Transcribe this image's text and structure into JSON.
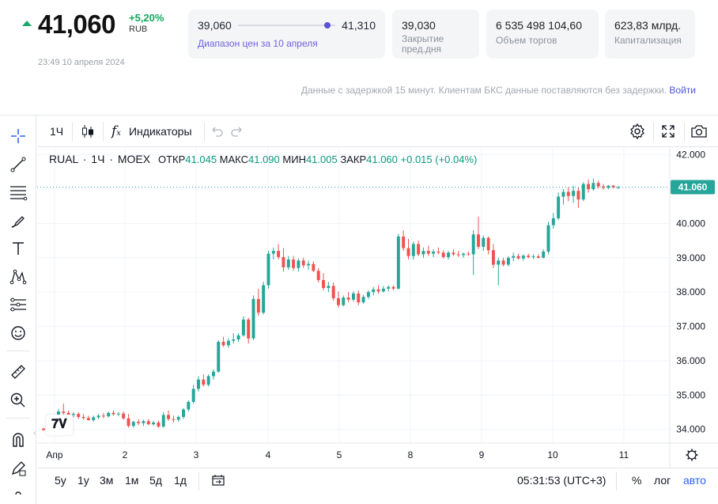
{
  "quote": {
    "price": "41,060",
    "change": "+5,20%",
    "currency": "RUB",
    "timestamp": "23:49 10 апреля 2024",
    "trend_color": "#1aa86a"
  },
  "stats": {
    "range_low": "39,060",
    "range_high": "41,310",
    "range_position": 0.92,
    "range_label": "Диапазон цен за 10 апреля",
    "prev_close": "39,030",
    "prev_close_label": "Закрытие пред.дня",
    "volume": "6 535 498 104,60",
    "volume_label": "Объем торгов",
    "cap": "623,83 млрд.",
    "cap_label": "Капитализация"
  },
  "notice": {
    "text": "Данные с задержкой 15 минут. Клиентам БКС данные поставляются без задержки.",
    "login": "Войти"
  },
  "toolbar": {
    "interval": "1Ч",
    "indicators": "Индикаторы"
  },
  "left_tools": [
    "crosshair-icon",
    "trendline-icon",
    "fib-icon",
    "brush-icon",
    "text-icon",
    "pattern-icon",
    "forecast-icon",
    "emoji-icon",
    "ruler-icon",
    "zoom-in-icon",
    "magnet-icon",
    "lock-draw-icon"
  ],
  "legend": {
    "symbol": "RUAL",
    "interval": "1Ч",
    "exchange": "MOEX",
    "open_label": "ОТКР",
    "open": "41.045",
    "high_label": "МАКС",
    "high": "41.090",
    "low_label": "МИН",
    "low": "41.005",
    "close_label": "ЗАКР",
    "close": "41.060",
    "change": "+0.015 (+0.04%)"
  },
  "bottom": {
    "ranges": [
      "5y",
      "1y",
      "3м",
      "1м",
      "5д",
      "1д"
    ],
    "clock": "05:31:53 (UTC+3)",
    "percent": "%",
    "log": "лог",
    "auto": "авто"
  },
  "colors": {
    "up": "#26a69a",
    "down": "#ef5350",
    "last_price_tag": "#26a69a",
    "accent": "#5b52d6"
  },
  "chart_data": {
    "type": "candlestick",
    "last_price": 41.06,
    "last_price_label": "41.060",
    "ylim": [
      33.6,
      42.2
    ],
    "y_ticks": [
      "42.000",
      "41.000",
      "40.000",
      "39.000",
      "38.000",
      "37.000",
      "36.000",
      "35.000",
      "34.000"
    ],
    "y_tick_values": [
      42,
      41,
      40,
      39,
      38,
      37,
      36,
      35,
      34
    ],
    "x_ticks": [
      "Апр",
      "2",
      "3",
      "4",
      "5",
      "8",
      "9",
      "10",
      "11"
    ],
    "grid": true,
    "candles": [
      [
        34.02,
        34.05,
        33.96,
        33.98
      ],
      [
        33.98,
        34.15,
        33.95,
        34.12
      ],
      [
        34.12,
        34.3,
        34.05,
        34.22
      ],
      [
        34.22,
        34.6,
        34.18,
        34.52
      ],
      [
        34.52,
        34.75,
        34.4,
        34.48
      ],
      [
        34.48,
        34.55,
        34.38,
        34.42
      ],
      [
        34.42,
        34.5,
        34.35,
        34.45
      ],
      [
        34.45,
        34.5,
        34.3,
        34.36
      ],
      [
        34.36,
        34.45,
        34.28,
        34.33
      ],
      [
        34.33,
        34.4,
        34.25,
        34.27
      ],
      [
        34.27,
        34.4,
        34.22,
        34.35
      ],
      [
        34.35,
        34.45,
        34.3,
        34.4
      ],
      [
        34.4,
        34.48,
        34.32,
        34.38
      ],
      [
        34.38,
        34.52,
        34.35,
        34.48
      ],
      [
        34.48,
        34.55,
        34.4,
        34.44
      ],
      [
        34.44,
        34.5,
        34.38,
        34.46
      ],
      [
        34.46,
        34.52,
        34.28,
        34.32
      ],
      [
        34.32,
        34.45,
        34.05,
        34.1
      ],
      [
        34.1,
        34.25,
        34.05,
        34.22
      ],
      [
        34.22,
        34.3,
        34.12,
        34.18
      ],
      [
        34.18,
        34.28,
        34.1,
        34.24
      ],
      [
        34.24,
        34.3,
        34.12,
        34.15
      ],
      [
        34.15,
        34.25,
        34.1,
        34.2
      ],
      [
        34.2,
        34.26,
        34.05,
        34.08
      ],
      [
        34.08,
        34.5,
        34.05,
        34.42
      ],
      [
        34.42,
        34.55,
        34.25,
        34.3
      ],
      [
        34.3,
        34.4,
        34.2,
        34.28
      ],
      [
        34.28,
        34.4,
        34.22,
        34.36
      ],
      [
        34.36,
        34.62,
        34.3,
        34.58
      ],
      [
        34.58,
        34.85,
        34.52,
        34.8
      ],
      [
        34.8,
        35.3,
        34.75,
        35.18
      ],
      [
        35.18,
        35.55,
        35.1,
        35.45
      ],
      [
        35.45,
        35.6,
        35.25,
        35.3
      ],
      [
        35.3,
        35.6,
        35.25,
        35.55
      ],
      [
        35.55,
        35.75,
        35.45,
        35.68
      ],
      [
        35.68,
        36.6,
        35.65,
        36.55
      ],
      [
        36.55,
        36.7,
        36.4,
        36.45
      ],
      [
        36.45,
        36.65,
        36.38,
        36.58
      ],
      [
        36.58,
        36.8,
        36.5,
        36.62
      ],
      [
        36.62,
        36.8,
        36.55,
        36.74
      ],
      [
        36.74,
        37.3,
        36.7,
        37.2
      ],
      [
        37.2,
        37.25,
        36.5,
        36.65
      ],
      [
        36.65,
        37.9,
        36.6,
        37.8
      ],
      [
        37.8,
        38.1,
        37.3,
        37.4
      ],
      [
        37.4,
        38.3,
        37.35,
        38.2
      ],
      [
        38.2,
        39.2,
        38.1,
        39.12
      ],
      [
        39.12,
        39.3,
        38.95,
        39.2
      ],
      [
        39.2,
        39.4,
        38.95,
        39.02
      ],
      [
        39.02,
        39.28,
        38.6,
        38.72
      ],
      [
        38.72,
        39.05,
        38.65,
        38.95
      ],
      [
        38.95,
        39.05,
        38.62,
        38.7
      ],
      [
        38.7,
        38.98,
        38.6,
        38.92
      ],
      [
        38.92,
        39.0,
        38.7,
        38.78
      ],
      [
        38.78,
        38.92,
        38.65,
        38.82
      ],
      [
        38.82,
        38.9,
        38.58,
        38.62
      ],
      [
        38.62,
        38.7,
        38.28,
        38.35
      ],
      [
        38.35,
        38.55,
        38.05,
        38.12
      ],
      [
        38.12,
        38.3,
        38.0,
        38.18
      ],
      [
        38.18,
        38.28,
        37.75,
        37.82
      ],
      [
        37.82,
        38.02,
        37.55,
        37.62
      ],
      [
        37.62,
        37.9,
        37.58,
        37.84
      ],
      [
        37.84,
        38.0,
        37.7,
        37.78
      ],
      [
        37.78,
        38.02,
        37.72,
        37.96
      ],
      [
        37.96,
        38.05,
        37.62,
        37.7
      ],
      [
        37.7,
        37.92,
        37.66,
        37.86
      ],
      [
        37.86,
        38.05,
        37.8,
        38.0
      ],
      [
        38.0,
        38.15,
        37.9,
        38.08
      ],
      [
        38.08,
        38.2,
        37.95,
        38.02
      ],
      [
        38.02,
        38.18,
        37.98,
        38.1
      ],
      [
        38.1,
        38.2,
        38.02,
        38.15
      ],
      [
        38.15,
        38.2,
        38.05,
        38.1
      ],
      [
        38.1,
        39.7,
        38.08,
        39.62
      ],
      [
        39.62,
        39.8,
        39.2,
        39.28
      ],
      [
        39.28,
        39.55,
        38.95,
        39.05
      ],
      [
        39.05,
        39.48,
        38.95,
        39.4
      ],
      [
        39.4,
        39.5,
        39.05,
        39.1
      ],
      [
        39.1,
        39.3,
        39.0,
        39.2
      ],
      [
        39.2,
        39.35,
        39.05,
        39.12
      ],
      [
        39.12,
        39.25,
        39.02,
        39.18
      ],
      [
        39.18,
        39.3,
        39.1,
        39.15
      ],
      [
        39.15,
        39.22,
        38.98,
        39.02
      ],
      [
        39.02,
        39.2,
        38.95,
        39.15
      ],
      [
        39.15,
        39.25,
        39.05,
        39.1
      ],
      [
        39.1,
        39.2,
        39.02,
        39.08
      ],
      [
        39.08,
        39.15,
        39.0,
        39.12
      ],
      [
        39.12,
        39.18,
        39.05,
        39.1
      ],
      [
        39.1,
        39.8,
        38.5,
        39.68
      ],
      [
        39.68,
        40.2,
        39.25,
        39.32
      ],
      [
        39.32,
        39.65,
        39.2,
        39.58
      ],
      [
        39.58,
        39.62,
        39.1,
        39.22
      ],
      [
        39.22,
        39.4,
        38.7,
        38.8
      ],
      [
        38.8,
        39.0,
        38.2,
        38.92
      ],
      [
        38.92,
        39.0,
        38.75,
        38.8
      ],
      [
        38.8,
        39.05,
        38.75,
        39.0
      ],
      [
        39.0,
        39.15,
        38.9,
        39.05
      ],
      [
        39.05,
        39.12,
        38.95,
        38.98
      ],
      [
        38.98,
        39.1,
        38.92,
        39.06
      ],
      [
        39.06,
        39.12,
        38.98,
        39.02
      ],
      [
        39.02,
        39.1,
        38.96,
        39.04
      ],
      [
        39.04,
        39.1,
        38.98,
        39.0
      ],
      [
        39.0,
        39.25,
        38.98,
        39.18
      ],
      [
        39.18,
        40.05,
        39.1,
        39.95
      ],
      [
        39.95,
        40.3,
        39.85,
        40.15
      ],
      [
        40.15,
        40.9,
        40.1,
        40.78
      ],
      [
        40.78,
        41.0,
        40.55,
        40.92
      ],
      [
        40.92,
        41.05,
        40.65,
        40.8
      ],
      [
        40.8,
        41.1,
        40.6,
        40.95
      ],
      [
        40.95,
        41.05,
        40.45,
        40.7
      ],
      [
        40.7,
        41.2,
        40.65,
        41.15
      ],
      [
        41.15,
        41.28,
        40.9,
        41.0
      ],
      [
        41.0,
        41.31,
        40.95,
        41.18
      ],
      [
        41.18,
        41.25,
        41.02,
        41.08
      ],
      [
        41.08,
        41.15,
        40.98,
        41.04
      ],
      [
        41.04,
        41.12,
        41.0,
        41.1
      ],
      [
        41.1,
        41.12,
        41.02,
        41.05
      ],
      [
        41.045,
        41.09,
        41.005,
        41.06
      ]
    ]
  }
}
